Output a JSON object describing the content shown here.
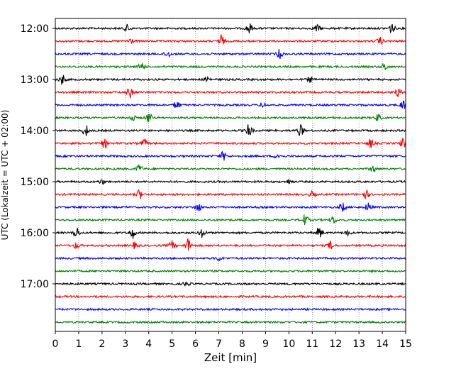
{
  "chart_data": {
    "type": "line",
    "title": "",
    "xlabel": "Zeit  [min]",
    "ylabel": "UTC (Lokalzeit = UTC + 02:00)",
    "xlim": [
      0,
      15
    ],
    "x_ticks": [
      0,
      1,
      2,
      3,
      4,
      5,
      6,
      7,
      8,
      9,
      10,
      11,
      12,
      13,
      14,
      15
    ],
    "y_ticks": [
      "12:00",
      "13:00",
      "14:00",
      "15:00",
      "16:00",
      "17:00"
    ],
    "grid": "vertical dotted",
    "trace_colors": [
      "#000000",
      "#ff0000",
      "#0000ff",
      "#008000"
    ],
    "traces": [
      {
        "start": "12:00",
        "color": "#000000",
        "events": [
          [
            3.1,
            5
          ],
          [
            8.3,
            7
          ],
          [
            11.2,
            5
          ],
          [
            14.4,
            7
          ]
        ]
      },
      {
        "start": "12:15",
        "color": "#ff0000",
        "events": [
          [
            3.2,
            5
          ],
          [
            7.1,
            9
          ],
          [
            13.9,
            5
          ]
        ]
      },
      {
        "start": "12:30",
        "color": "#0000ff",
        "events": [
          [
            4.8,
            5
          ],
          [
            9.6,
            6
          ]
        ]
      },
      {
        "start": "12:45",
        "color": "#008000",
        "events": [
          [
            3.7,
            6
          ],
          [
            14.1,
            5
          ]
        ]
      },
      {
        "start": "13:00",
        "color": "#000000",
        "events": [
          [
            0.3,
            7
          ],
          [
            6.5,
            4
          ],
          [
            10.9,
            4
          ]
        ]
      },
      {
        "start": "13:15",
        "color": "#ff0000",
        "events": [
          [
            3.2,
            7
          ],
          [
            14.7,
            6
          ]
        ]
      },
      {
        "start": "13:30",
        "color": "#0000ff",
        "events": [
          [
            5.2,
            6
          ],
          [
            8.9,
            4
          ],
          [
            14.9,
            7
          ]
        ]
      },
      {
        "start": "13:45",
        "color": "#008000",
        "events": [
          [
            3.3,
            5
          ],
          [
            4.0,
            7
          ],
          [
            13.8,
            5
          ]
        ]
      },
      {
        "start": "14:00",
        "color": "#000000",
        "events": [
          [
            1.3,
            8
          ],
          [
            8.3,
            9
          ],
          [
            10.5,
            8
          ]
        ]
      },
      {
        "start": "14:15",
        "color": "#ff0000",
        "events": [
          [
            2.1,
            6
          ],
          [
            3.8,
            5
          ],
          [
            13.5,
            6
          ],
          [
            14.9,
            7
          ]
        ]
      },
      {
        "start": "14:30",
        "color": "#0000ff",
        "events": [
          [
            7.2,
            6
          ],
          [
            9.5,
            4
          ]
        ]
      },
      {
        "start": "14:45",
        "color": "#008000",
        "events": [
          [
            3.6,
            6
          ],
          [
            13.6,
            5
          ]
        ]
      },
      {
        "start": "15:00",
        "color": "#000000",
        "events": [
          [
            2.0,
            3
          ],
          [
            10.0,
            3
          ]
        ]
      },
      {
        "start": "15:15",
        "color": "#ff0000",
        "events": [
          [
            3.6,
            6
          ],
          [
            11.0,
            4
          ],
          [
            13.3,
            6
          ]
        ]
      },
      {
        "start": "15:30",
        "color": "#0000ff",
        "events": [
          [
            6.1,
            7
          ],
          [
            12.3,
            6
          ],
          [
            13.4,
            6
          ]
        ]
      },
      {
        "start": "15:45",
        "color": "#008000",
        "events": [
          [
            10.7,
            8
          ],
          [
            11.9,
            5
          ]
        ]
      },
      {
        "start": "16:00",
        "color": "#000000",
        "events": [
          [
            0.9,
            8
          ],
          [
            3.3,
            8
          ],
          [
            6.3,
            7
          ],
          [
            11.3,
            8
          ],
          [
            12.5,
            4
          ]
        ]
      },
      {
        "start": "16:15",
        "color": "#ff0000",
        "events": [
          [
            0.9,
            4
          ],
          [
            3.4,
            4
          ],
          [
            5.0,
            6
          ],
          [
            5.7,
            10
          ],
          [
            11.8,
            6
          ]
        ]
      },
      {
        "start": "16:30",
        "color": "#0000ff",
        "events": [
          [
            7.0,
            3
          ]
        ]
      },
      {
        "start": "16:45",
        "color": "#008000",
        "events": []
      },
      {
        "start": "17:00",
        "color": "#000000",
        "events": [
          [
            5.6,
            3
          ]
        ]
      },
      {
        "start": "17:15",
        "color": "#ff0000",
        "events": []
      },
      {
        "start": "17:30",
        "color": "#0000ff",
        "events": []
      },
      {
        "start": "17:45",
        "color": "#008000",
        "events": []
      }
    ]
  }
}
